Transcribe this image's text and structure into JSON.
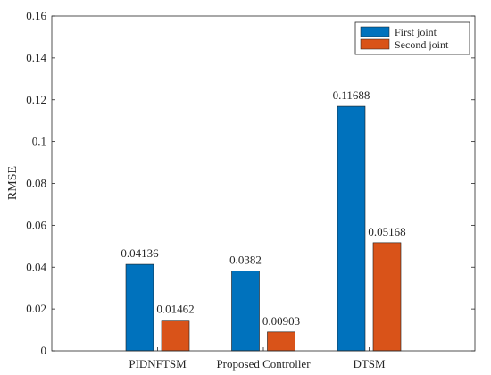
{
  "chart_data": {
    "type": "bar",
    "categories": [
      "PIDNFTSM",
      "Proposed Controller",
      "DTSM"
    ],
    "series": [
      {
        "name": "First joint",
        "values": [
          0.04136,
          0.0382,
          0.11688
        ],
        "labels": [
          "0.04136",
          "0.0382",
          "0.11688"
        ],
        "color": "#0072BD"
      },
      {
        "name": "Second joint",
        "values": [
          0.01462,
          0.00903,
          0.05168
        ],
        "labels": [
          "0.01462",
          "0.00903",
          "0.05168"
        ],
        "color": "#D95319"
      }
    ],
    "title": "",
    "xlabel": "",
    "ylabel": "RMSE",
    "ylim": [
      0,
      0.16
    ],
    "yticks": [
      0,
      0.02,
      0.04,
      0.06,
      0.08,
      0.1,
      0.12,
      0.14,
      0.16
    ],
    "ytick_labels": [
      "0",
      "0.02",
      "0.04",
      "0.06",
      "0.08",
      "0.1",
      "0.12",
      "0.14",
      "0.16"
    ],
    "grid": false,
    "legend_position": "top-right"
  }
}
